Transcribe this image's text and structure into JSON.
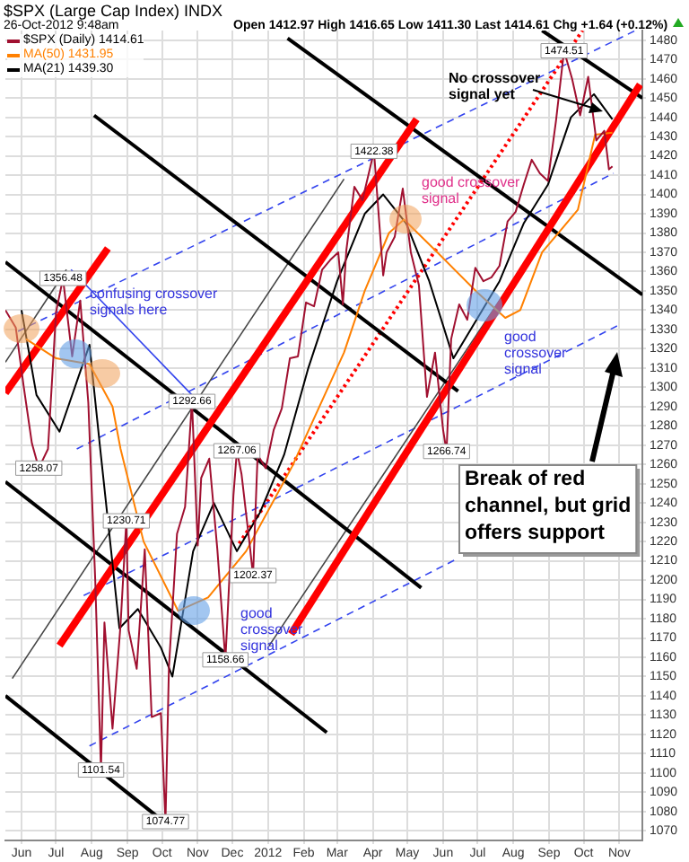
{
  "chart_data": {
    "type": "line",
    "title": "$SPX (Large Cap Index) INDX",
    "subtitle": "26-Oct-2012 9:48am",
    "legend": "top left",
    "grid": true,
    "xlim": [
      "2011-05-18",
      "2012-11-21"
    ],
    "xticks": [
      {
        "value": "2011-06-01",
        "label": "Jun"
      },
      {
        "value": "2011-07-01",
        "label": "Jul"
      },
      {
        "value": "2011-08-01",
        "label": "Aug"
      },
      {
        "value": "2011-09-01",
        "label": "Sep"
      },
      {
        "value": "2011-10-01",
        "label": "Oct"
      },
      {
        "value": "2011-11-01",
        "label": "Nov"
      },
      {
        "value": "2011-12-01",
        "label": "Dec"
      },
      {
        "value": "2012-01-01",
        "label": "2012"
      },
      {
        "value": "2012-02-01",
        "label": "Feb"
      },
      {
        "value": "2012-03-01",
        "label": "Mar"
      },
      {
        "value": "2012-04-01",
        "label": "Apr"
      },
      {
        "value": "2012-05-01",
        "label": "May"
      },
      {
        "value": "2012-06-01",
        "label": "Jun"
      },
      {
        "value": "2012-07-01",
        "label": "Jul"
      },
      {
        "value": "2012-08-01",
        "label": "Aug"
      },
      {
        "value": "2012-09-01",
        "label": "Sep"
      },
      {
        "value": "2012-10-01",
        "label": "Oct"
      },
      {
        "value": "2012-11-01",
        "label": "Nov"
      }
    ],
    "ylim": [
      1065,
      1485
    ],
    "yticks": [
      1070,
      1080,
      1090,
      1100,
      1110,
      1120,
      1130,
      1140,
      1150,
      1160,
      1170,
      1180,
      1190,
      1200,
      1210,
      1220,
      1230,
      1240,
      1250,
      1260,
      1270,
      1280,
      1290,
      1300,
      1310,
      1320,
      1330,
      1340,
      1350,
      1360,
      1370,
      1380,
      1390,
      1400,
      1410,
      1420,
      1430,
      1440,
      1450,
      1460,
      1470,
      1480
    ],
    "series": [
      {
        "name": "$SPX (Daily) 1414.61",
        "color": "#a01030",
        "x": [
          "2011-05-18",
          "2011-05-27",
          "2011-06-03",
          "2011-06-10",
          "2011-06-16",
          "2011-06-24",
          "2011-07-01",
          "2011-07-07",
          "2011-07-15",
          "2011-07-22",
          "2011-07-29",
          "2011-08-04",
          "2011-08-09",
          "2011-08-12",
          "2011-08-19",
          "2011-08-26",
          "2011-08-31",
          "2011-09-02",
          "2011-09-09",
          "2011-09-16",
          "2011-09-22",
          "2011-09-30",
          "2011-10-04",
          "2011-10-07",
          "2011-10-14",
          "2011-10-21",
          "2011-10-27",
          "2011-11-01",
          "2011-11-04",
          "2011-11-11",
          "2011-11-18",
          "2011-11-25",
          "2011-12-02",
          "2011-12-05",
          "2011-12-09",
          "2011-12-16",
          "2011-12-19",
          "2011-12-23",
          "2011-12-30",
          "2012-01-06",
          "2012-01-13",
          "2012-01-20",
          "2012-01-27",
          "2012-02-03",
          "2012-02-10",
          "2012-02-17",
          "2012-02-24",
          "2012-03-02",
          "2012-03-06",
          "2012-03-09",
          "2012-03-16",
          "2012-03-23",
          "2012-04-02",
          "2012-04-10",
          "2012-04-13",
          "2012-04-20",
          "2012-04-27",
          "2012-05-04",
          "2012-05-11",
          "2012-05-18",
          "2012-05-25",
          "2012-06-01",
          "2012-06-04",
          "2012-06-08",
          "2012-06-15",
          "2012-06-22",
          "2012-06-29",
          "2012-07-06",
          "2012-07-13",
          "2012-07-20",
          "2012-07-27",
          "2012-08-03",
          "2012-08-10",
          "2012-08-17",
          "2012-08-24",
          "2012-08-31",
          "2012-09-07",
          "2012-09-14",
          "2012-09-21",
          "2012-09-28",
          "2012-10-05",
          "2012-10-12",
          "2012-10-19",
          "2012-10-23",
          "2012-10-26"
        ],
        "values": [
          1340,
          1331,
          1300,
          1271,
          1258.07,
          1268,
          1339,
          1356.48,
          1316,
          1345,
          1292,
          1200,
          1101.54,
          1178,
          1123,
          1177,
          1230.71,
          1174,
          1154,
          1216,
          1129,
          1131,
          1074.77,
          1155,
          1224,
          1238,
          1292.66,
          1218,
          1253,
          1263,
          1216,
          1158.66,
          1244,
          1267.06,
          1255,
          1219,
          1202.37,
          1265,
          1258,
          1278,
          1289,
          1315,
          1316,
          1344,
          1342,
          1361,
          1366,
          1370,
          1343,
          1371,
          1404,
          1397,
          1422.38,
          1358,
          1370,
          1378,
          1403,
          1370,
          1353,
          1295,
          1318,
          1278,
          1266.74,
          1325,
          1343,
          1335,
          1362,
          1355,
          1357,
          1363,
          1386,
          1391,
          1405,
          1418,
          1411,
          1407,
          1438,
          1474.51,
          1460,
          1441,
          1461,
          1428,
          1433,
          1413,
          1414.61
        ]
      },
      {
        "name": "MA(50) 1431.95",
        "color": "#ff8000",
        "x": [
          "2011-06-05",
          "2011-07-01",
          "2011-07-30",
          "2011-08-19",
          "2011-08-26",
          "2011-09-15",
          "2011-10-15",
          "2011-11-10",
          "2011-12-13",
          "2012-01-13",
          "2012-01-22",
          "2012-03-07",
          "2012-03-25",
          "2012-04-15",
          "2012-04-28",
          "2012-05-27",
          "2012-07-01",
          "2012-07-25",
          "2012-08-07",
          "2012-08-26",
          "2012-09-26",
          "2012-10-11",
          "2012-10-26"
        ],
        "values": [
          1325,
          1315,
          1312,
          1290,
          1268,
          1220,
          1184,
          1191,
          1215,
          1249,
          1259,
          1318,
          1350,
          1380,
          1387,
          1370,
          1349,
          1336,
          1340,
          1370,
          1392,
          1431,
          1432
        ]
      },
      {
        "name": "MA(21) 1439.30",
        "color": "#000000",
        "x": [
          "2011-06-01",
          "2011-06-14",
          "2011-07-04",
          "2011-07-30",
          "2011-08-08",
          "2011-08-25",
          "2011-09-10",
          "2011-09-30",
          "2011-10-10",
          "2011-10-28",
          "2011-11-15",
          "2011-12-05",
          "2011-12-25",
          "2012-01-15",
          "2012-02-05",
          "2012-03-01",
          "2012-03-25",
          "2012-04-10",
          "2012-04-30",
          "2012-05-20",
          "2012-06-10",
          "2012-06-30",
          "2012-07-20",
          "2012-08-10",
          "2012-08-31",
          "2012-09-20",
          "2012-10-10",
          "2012-10-26"
        ],
        "values": [
          1340,
          1296,
          1277,
          1322,
          1270,
          1175,
          1185,
          1165,
          1150,
          1215,
          1240,
          1215,
          1235,
          1265,
          1310,
          1355,
          1390,
          1400,
          1385,
          1355,
          1315,
          1335,
          1355,
          1385,
          1405,
          1440,
          1452,
          1439
        ]
      },
      {
        "type": "line",
        "color": "#ff0000",
        "x": [
          "2011-05-18",
          "2011-08-15"
        ],
        "values": [
          1297,
          1372
        ]
      },
      {
        "type": "line",
        "color": "#ff0000",
        "x": [
          "2011-07-04",
          "2012-05-09"
        ],
        "values": [
          1166,
          1439
        ]
      },
      {
        "type": "line",
        "color": "#ff0000",
        "x": [
          "2012-01-21",
          "2012-11-19"
        ],
        "values": [
          1172,
          1457
        ]
      },
      {
        "type": "line",
        "color": "#000000",
        "x": [
          "2012-08-26",
          "2012-11-21"
        ],
        "values": [
          1485,
          1450
        ]
      },
      {
        "type": "line",
        "color": "#000000",
        "x": [
          "2012-01-18",
          "2012-11-21"
        ],
        "values": [
          1481,
          1348
        ]
      },
      {
        "type": "line",
        "color": "#000000",
        "x": [
          "2011-08-03",
          "2012-06-14"
        ],
        "values": [
          1441,
          1298
        ]
      },
      {
        "type": "line",
        "color": "#000000",
        "x": [
          "2011-05-18",
          "2012-05-13"
        ],
        "values": [
          1365,
          1196
        ]
      },
      {
        "type": "line",
        "color": "#000000",
        "x": [
          "2011-05-18",
          "2012-02-21"
        ],
        "values": [
          1251,
          1121
        ]
      },
      {
        "type": "line",
        "color": "#000000",
        "x": [
          "2011-05-18",
          "2011-10-04"
        ],
        "values": [
          1140,
          1074
        ]
      },
      {
        "type": "line",
        "color": "#444444",
        "x": [
          "2011-05-24",
          "2012-03-07"
        ],
        "values": [
          1149,
          1408
        ]
      },
      {
        "type": "line",
        "color": "#444444",
        "x": [
          "2011-05-18",
          "2011-07-10"
        ],
        "values": [
          1313,
          1361
        ]
      },
      {
        "type": "line",
        "color": "#444444",
        "x": [
          "2012-01-02",
          "2012-10-24"
        ],
        "values": [
          1166,
          1431
        ]
      },
      {
        "type": "line",
        "color": "#3344ee",
        "line_style": "dashed",
        "x": [
          "2011-05-29",
          "2012-11-15"
        ],
        "values": [
          1329,
          1485
        ]
      },
      {
        "type": "line",
        "color": "#3344ee",
        "line_style": "dashed",
        "x": [
          "2011-07-19",
          "2012-10-27"
        ],
        "values": [
          1268,
          1411
        ]
      },
      {
        "type": "line",
        "color": "#3344ee",
        "line_style": "dashed",
        "x": [
          "2011-07-25",
          "2012-11-03"
        ],
        "values": [
          1192,
          1333
        ]
      },
      {
        "type": "line",
        "color": "#3344ee",
        "line_style": "dashed",
        "x": [
          "2011-07-30",
          "2012-06-13"
        ],
        "values": [
          1114,
          1211
        ]
      },
      {
        "type": "line",
        "color": "#3344ee",
        "x": [
          "2011-07-14",
          "2011-10-27"
        ],
        "values": [
          1361,
          1296
        ]
      },
      {
        "type": "line",
        "color": "#ff0000",
        "line_style": "dotted",
        "x": [
          "2011-12-07",
          "2012-09-30"
        ],
        "values": [
          1219,
          1485
        ]
      }
    ],
    "annotations": [
      "Open 1412.97  High 1416.65  Low 1411.30  Last 1414.61  Chg +1.64 (+0.12%)",
      {
        "text": "1356.48",
        "x": "2011-07-07",
        "y": 1356.48
      },
      {
        "text": "1258.07",
        "x": "2011-06-16",
        "y": 1258.07
      },
      {
        "text": "1230.71",
        "x": "2011-08-31",
        "y": 1230.71
      },
      {
        "text": "1101.54",
        "x": "2011-08-09",
        "y": 1101.54
      },
      {
        "text": "1074.77",
        "x": "2011-10-04",
        "y": 1074.77
      },
      {
        "text": "1292.66",
        "x": "2011-10-27",
        "y": 1292.66
      },
      {
        "text": "1267.06",
        "x": "2011-12-05",
        "y": 1267.06
      },
      {
        "text": "1202.37",
        "x": "2011-12-19",
        "y": 1202.37
      },
      {
        "text": "1158.66",
        "x": "2011-11-25",
        "y": 1158.66
      },
      {
        "text": "1422.38",
        "x": "2012-04-02",
        "y": 1422.38
      },
      {
        "text": "1266.74",
        "x": "2012-06-04",
        "y": 1266.74
      },
      {
        "text": "1474.51",
        "x": "2012-09-14",
        "y": 1474.51
      },
      "confusing crossover\nsignals here",
      "good crossover\nsignal",
      "good\ncrossover\nsignal",
      "good\ncrossover\nsignal",
      "No crossover\nsignal yet",
      "Break of red\nchannel, but grid\noffers support"
    ]
  }
}
